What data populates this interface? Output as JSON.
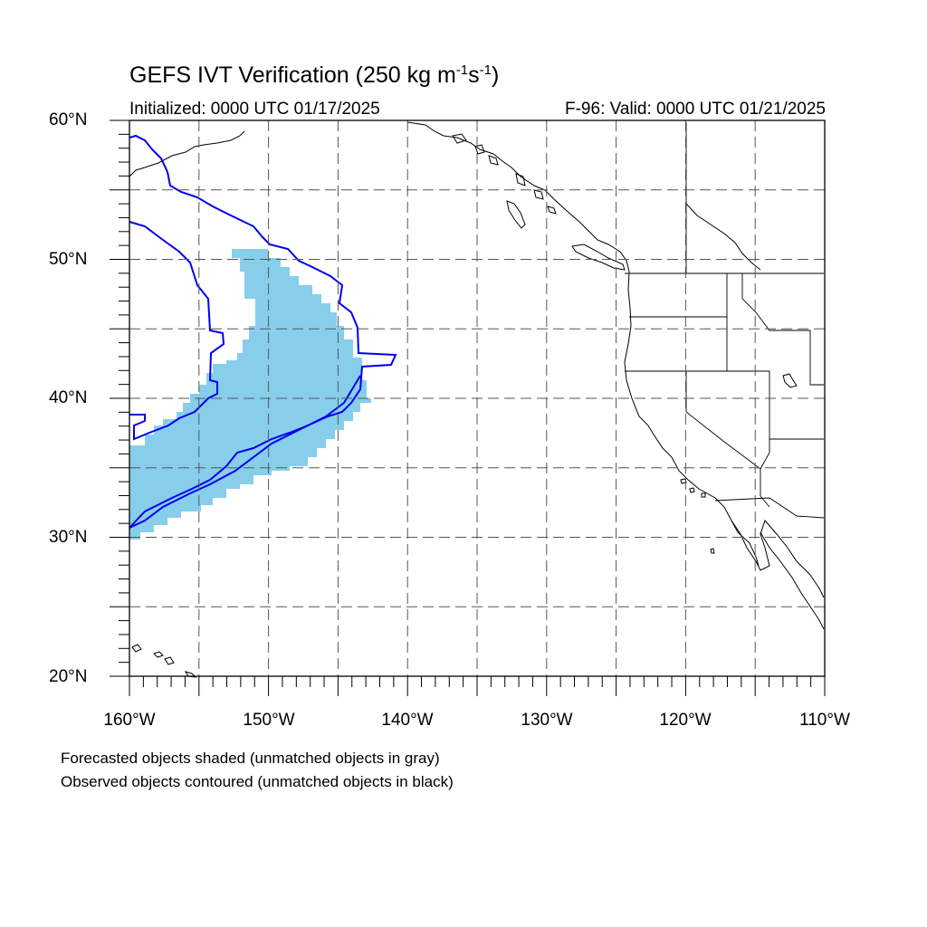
{
  "title": {
    "main": "GEFS IVT Verification (250 kg m",
    "sup1": "-1",
    "mid": "s",
    "sup2": "-1",
    "end": ")"
  },
  "subtitle_left": "Initialized: 0000 UTC 01/17/2025",
  "subtitle_right": "F-96: Valid: 0000 UTC 01/21/2025",
  "lat_labels": [
    "20°N",
    "30°N",
    "40°N",
    "50°N",
    "60°N"
  ],
  "lon_labels": [
    "160°W",
    "150°W",
    "140°W",
    "130°W",
    "120°W",
    "110°W"
  ],
  "footer_lines": [
    "Forecasted objects shaded (unmatched objects in gray)",
    "Observed objects contoured (unmatched objects in black)"
  ],
  "colors": {
    "forecast_shading": "#87ceeb",
    "observed_contour": "#0000ee",
    "coastline": "#000000",
    "grid": "#555555"
  },
  "map_extent": {
    "lon": [
      -160,
      -110
    ],
    "lat": [
      20,
      60
    ]
  }
}
